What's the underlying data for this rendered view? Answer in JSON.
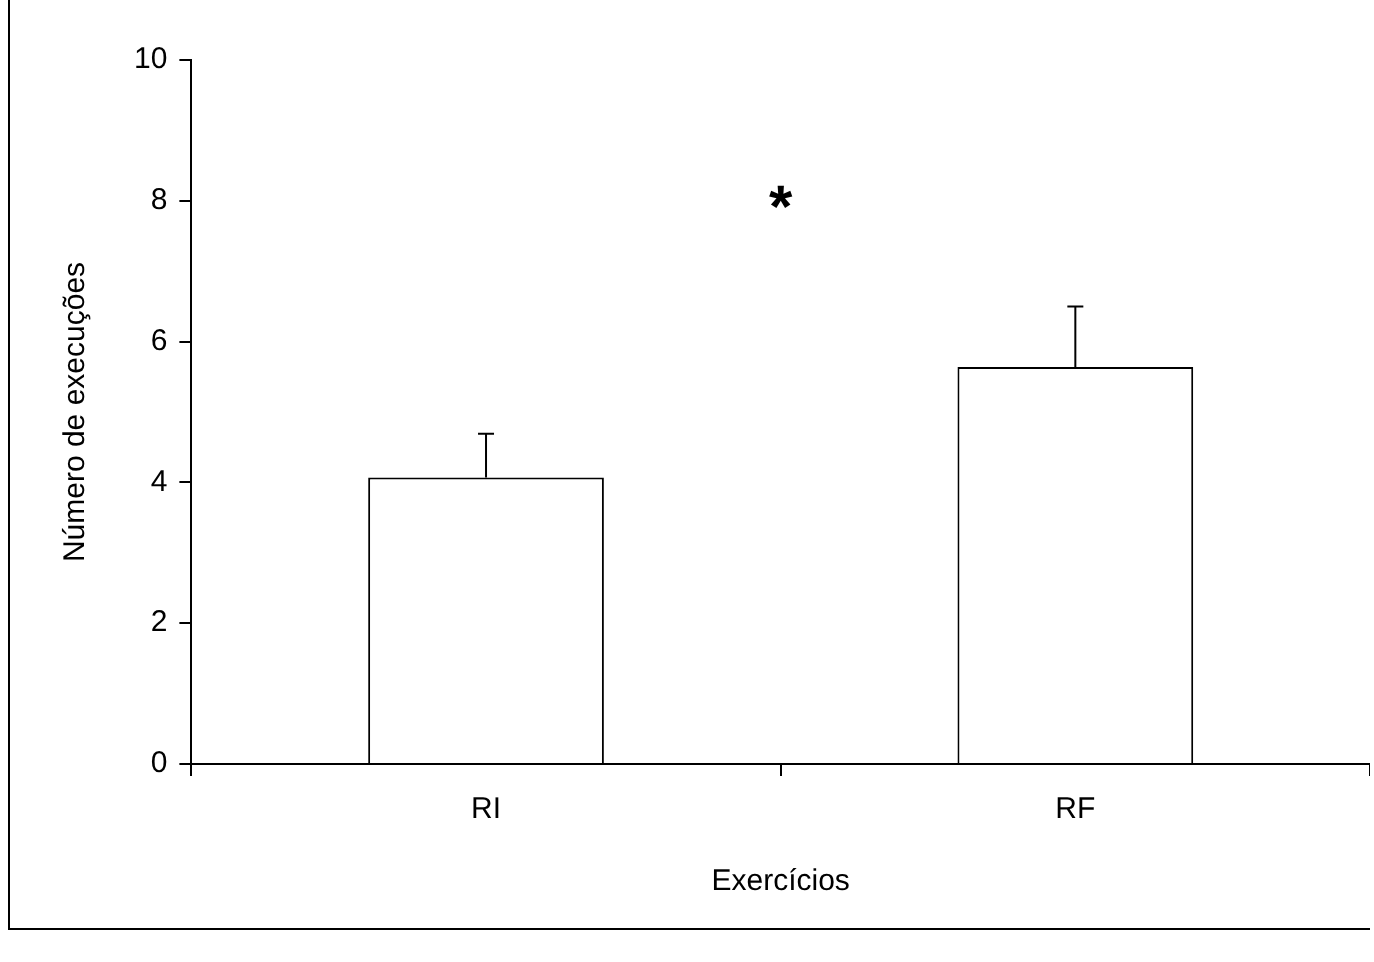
{
  "chart_data": {
    "type": "bar",
    "xlabel": "Exercícios",
    "ylabel": "Número de execuções",
    "categories": [
      "RI",
      "RF"
    ],
    "values": [
      4.07,
      5.64
    ],
    "errors": [
      [
        4.07,
        4.69
      ],
      [
        5.64,
        6.5
      ]
    ],
    "color": "#ffffff",
    "ylim": [
      0,
      10
    ],
    "yticks": [
      0,
      2,
      4,
      6,
      8,
      10
    ],
    "annotations": [
      "*"
    ],
    "grid": false,
    "legend": false
  }
}
